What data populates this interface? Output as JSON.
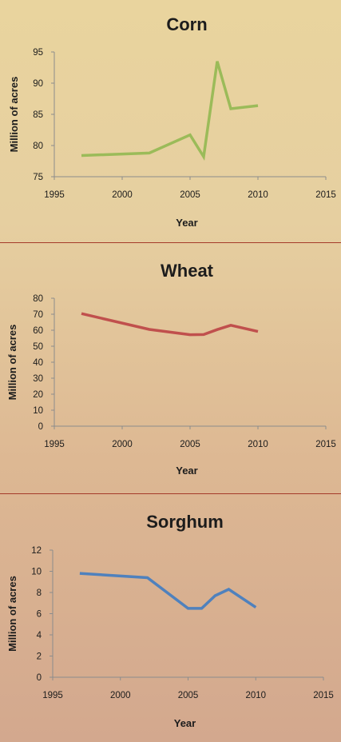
{
  "chart_data": [
    {
      "type": "line",
      "title": "Corn",
      "xlabel": "Year",
      "ylabel": "Million of  acres",
      "color": "#9bbb59",
      "xlim": [
        1995,
        2015
      ],
      "ylim": [
        75,
        95
      ],
      "xticks": [
        "1995",
        "2000",
        "2005",
        "2010",
        "2015"
      ],
      "yticks": [
        "75",
        "80",
        "85",
        "90",
        "95"
      ],
      "x": [
        1997,
        2002,
        2005,
        2006,
        2007,
        2008,
        2010
      ],
      "y": [
        78.4,
        78.8,
        81.7,
        78.2,
        93.5,
        85.9,
        86.4
      ]
    },
    {
      "type": "line",
      "title": "Wheat",
      "xlabel": "Year",
      "ylabel": "Million of acres",
      "color": "#c0504d",
      "xlim": [
        1995,
        2015
      ],
      "ylim": [
        0,
        80
      ],
      "xticks": [
        "1995",
        "2000",
        "2005",
        "2010",
        "2015"
      ],
      "yticks": [
        "0",
        "10",
        "20",
        "30",
        "40",
        "50",
        "60",
        "70",
        "80"
      ],
      "x": [
        1997,
        2002,
        2005,
        2006,
        2007,
        2008,
        2010
      ],
      "y": [
        70.4,
        60.5,
        57.2,
        57.3,
        60.4,
        63.1,
        59.2
      ]
    },
    {
      "type": "line",
      "title": "Sorghum",
      "xlabel": "Year",
      "ylabel": "Million of acres",
      "color": "#4f81bd",
      "xlim": [
        1995,
        2015
      ],
      "ylim": [
        0,
        12
      ],
      "xticks": [
        "1995",
        "2000",
        "2005",
        "2010",
        "2015"
      ],
      "yticks": [
        "0",
        "2",
        "4",
        "6",
        "8",
        "10",
        "12"
      ],
      "x": [
        1997,
        2002,
        2005,
        2006,
        2007,
        2008,
        2010
      ],
      "y": [
        9.8,
        9.4,
        6.5,
        6.5,
        7.7,
        8.3,
        6.6
      ]
    }
  ]
}
